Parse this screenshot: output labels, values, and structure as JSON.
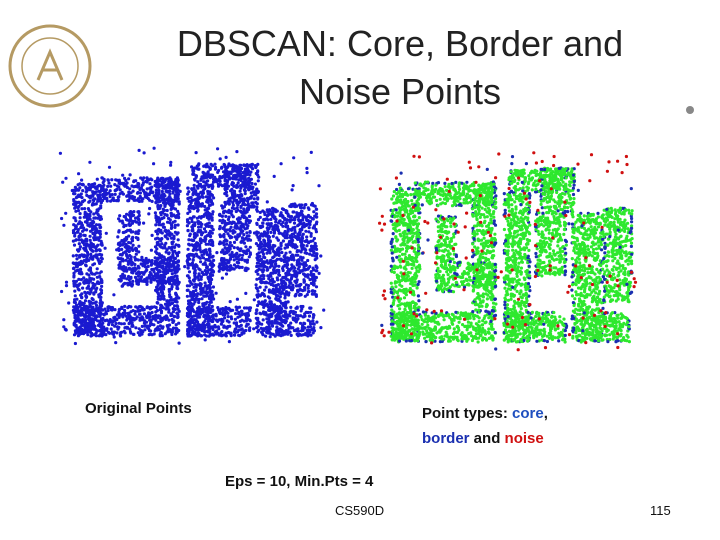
{
  "title": [
    "DBSCAN: Core, Border and",
    "Noise Points"
  ],
  "left_caption": "Original Points",
  "right_caption": {
    "line1": [
      "Point types: ",
      "core",
      ","
    ],
    "line2": [
      "border",
      " and ",
      "noise"
    ]
  },
  "parameters": "Eps = 10, Min.Pts = 4",
  "footer": {
    "course": "CS590D",
    "page": "115"
  }
}
